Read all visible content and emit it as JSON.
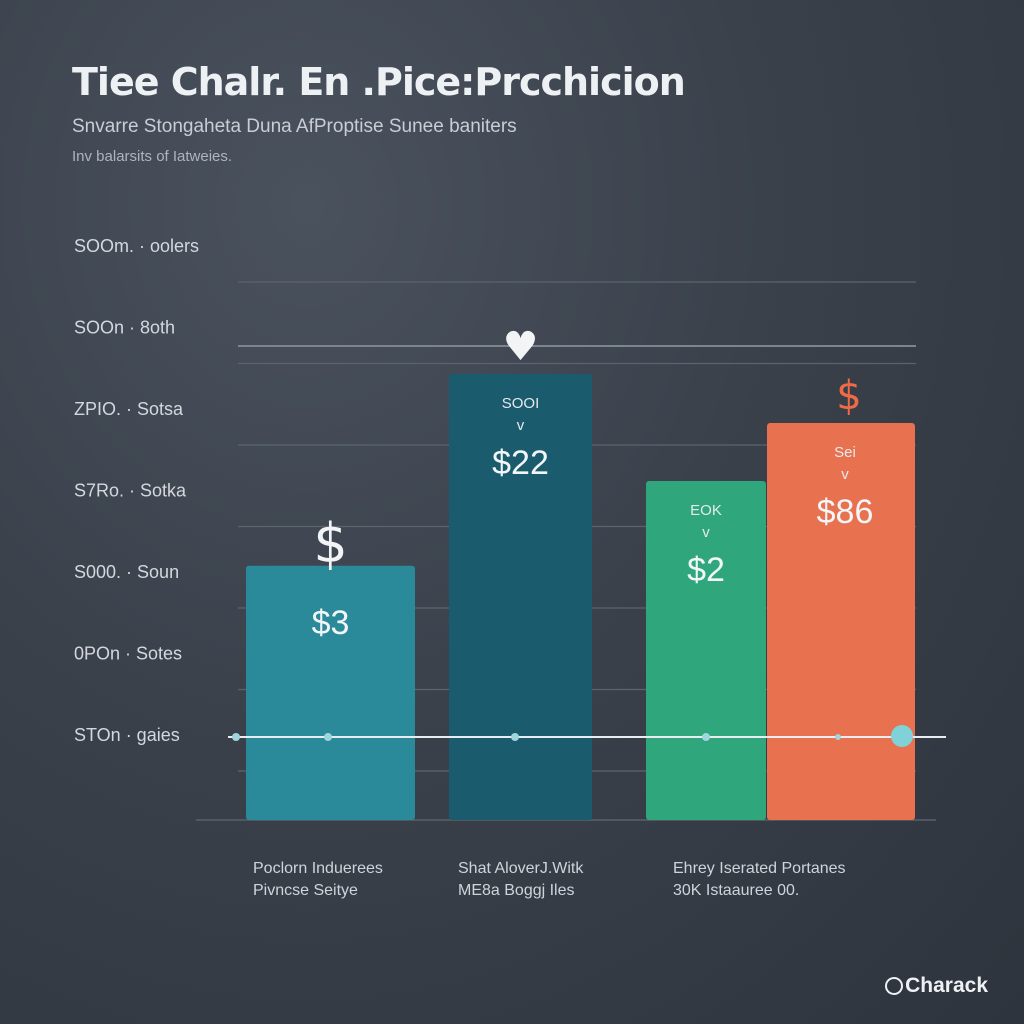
{
  "chart_data": {
    "type": "bar",
    "title": "Tiee Chalr. En .Pice:Prcchicion",
    "subtitle": "Snvarre  Stongaheta Duna AfProptise  Sunee baniters",
    "note": "Inv balarsits of Iatweies.",
    "yticks": [
      {
        "label": "SOOm. · oolers",
        "y": 0
      },
      {
        "label": "SOOn · 8oth",
        "y": 1
      },
      {
        "label": "ZPIO. · Sotsa",
        "y": 2
      },
      {
        "label": "S7Ro. · Sotka",
        "y": 3
      },
      {
        "label": "S000. · Soun",
        "y": 4
      },
      {
        "label": "0POn · Sotes",
        "y": 5
      },
      {
        "label": "STOn · gaies",
        "y": 6
      }
    ],
    "categories": [
      {
        "line1": "Poclorn Induerees",
        "line2": "Pivncse Seitye"
      },
      {
        "line1": "Shat AloverJ.Witk",
        "line2": "ME8a Boggj Iles"
      },
      {
        "line1": "Ehrey Iserated Portanes",
        "line2": "30K Istaauree 00."
      }
    ],
    "bars": [
      {
        "value_label": "$3",
        "sub_label": "",
        "top_symbol": "$",
        "color": "#2a8a99",
        "level": 0.57
      },
      {
        "value_label": "$22",
        "sub_label": "SOOI",
        "top_symbol": "♥",
        "color": "#1b5b6e",
        "level": 1.0
      },
      {
        "value_label": "$2",
        "sub_label": "EOK",
        "top_symbol": "",
        "color": "#2fa67c",
        "level": 0.76
      },
      {
        "value_label": "$86",
        "sub_label": "Sei",
        "top_symbol": "$",
        "color": "#e8714f",
        "level": 0.89
      }
    ]
  },
  "brand": "Charack"
}
